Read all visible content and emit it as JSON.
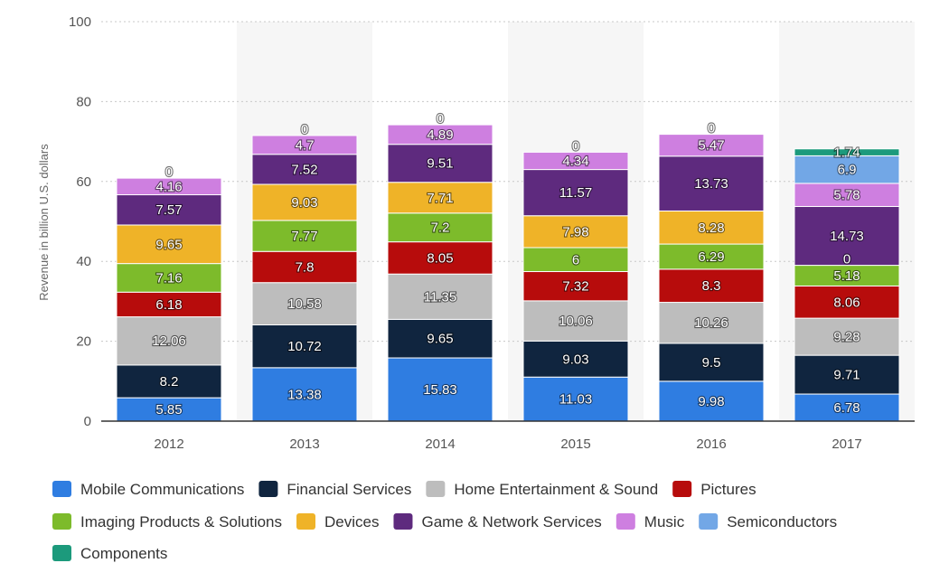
{
  "chart_data": {
    "type": "bar",
    "stacked": true,
    "title": "",
    "xlabel": "",
    "ylabel": "Revenue in billion U.S. dollars",
    "ylim": [
      0,
      100
    ],
    "yticks": [
      0,
      20,
      40,
      60,
      80,
      100
    ],
    "grid": true,
    "legend_position": "bottom",
    "categories": [
      "2012",
      "2013",
      "2014",
      "2015",
      "2016",
      "2017"
    ],
    "series": [
      {
        "name": "Mobile Communications",
        "color": "#2F7DE1",
        "values": [
          5.85,
          13.38,
          15.83,
          11.03,
          9.98,
          6.78
        ]
      },
      {
        "name": "Financial Services",
        "color": "#10253F",
        "values": [
          8.2,
          10.72,
          9.65,
          9.03,
          9.5,
          9.71
        ]
      },
      {
        "name": "Home Entertainment & Sound",
        "color": "#BDBDBD",
        "values": [
          12.06,
          10.58,
          11.35,
          10.06,
          10.26,
          9.28
        ]
      },
      {
        "name": "Pictures",
        "color": "#B70C0C",
        "values": [
          6.18,
          7.8,
          8.05,
          7.32,
          8.3,
          8.06
        ]
      },
      {
        "name": "Imaging Products & Solutions",
        "color": "#7DBB2B",
        "values": [
          7.16,
          7.77,
          7.2,
          6,
          6.29,
          5.18
        ]
      },
      {
        "name": "Devices",
        "color": "#EFB328",
        "values": [
          9.65,
          9.03,
          7.71,
          7.98,
          8.28,
          0
        ]
      },
      {
        "name": "Game & Network Services",
        "color": "#5E2A7E",
        "values": [
          7.57,
          7.52,
          9.51,
          11.57,
          13.73,
          14.73
        ]
      },
      {
        "name": "Music",
        "color": "#CE7FE0",
        "values": [
          4.16,
          4.7,
          4.89,
          4.34,
          5.47,
          5.78
        ]
      },
      {
        "name": "Semiconductors",
        "color": "#72A7E6",
        "values": [
          0,
          0,
          0,
          0,
          0,
          6.9
        ]
      },
      {
        "name": "Components",
        "color": "#1C9A7C",
        "values": [
          0,
          0,
          0,
          0,
          0,
          1.74
        ]
      }
    ],
    "data_labels": [
      [
        "5.85",
        "8.2",
        "12.06",
        "6.18",
        "7.16",
        "9.65",
        "7.57",
        "4.16",
        "0",
        null
      ],
      [
        "13.38",
        "10.72",
        "10.58",
        "7.8",
        "7.77",
        "9.03",
        "7.52",
        "4.7",
        "0",
        null
      ],
      [
        "15.83",
        "9.65",
        "11.35",
        "8.05",
        "7.2",
        "7.71",
        "9.51",
        "4.89",
        "0",
        null
      ],
      [
        "11.03",
        "9.03",
        "10.06",
        "7.32",
        "6",
        "7.98",
        "11.57",
        "4.34",
        "0",
        null
      ],
      [
        "9.98",
        "9.5",
        "10.26",
        "8.3",
        "6.29",
        "8.28",
        "13.73",
        "5.47",
        "0",
        null
      ],
      [
        "6.78",
        "9.71",
        "9.28",
        "8.06",
        "5.18",
        "0",
        "14.73",
        "5.78",
        "6.9",
        "1.74"
      ]
    ]
  },
  "colors": {
    "band_shade": "#F6F6F6",
    "grid": "#C8C8C8",
    "axis": "#333333"
  }
}
